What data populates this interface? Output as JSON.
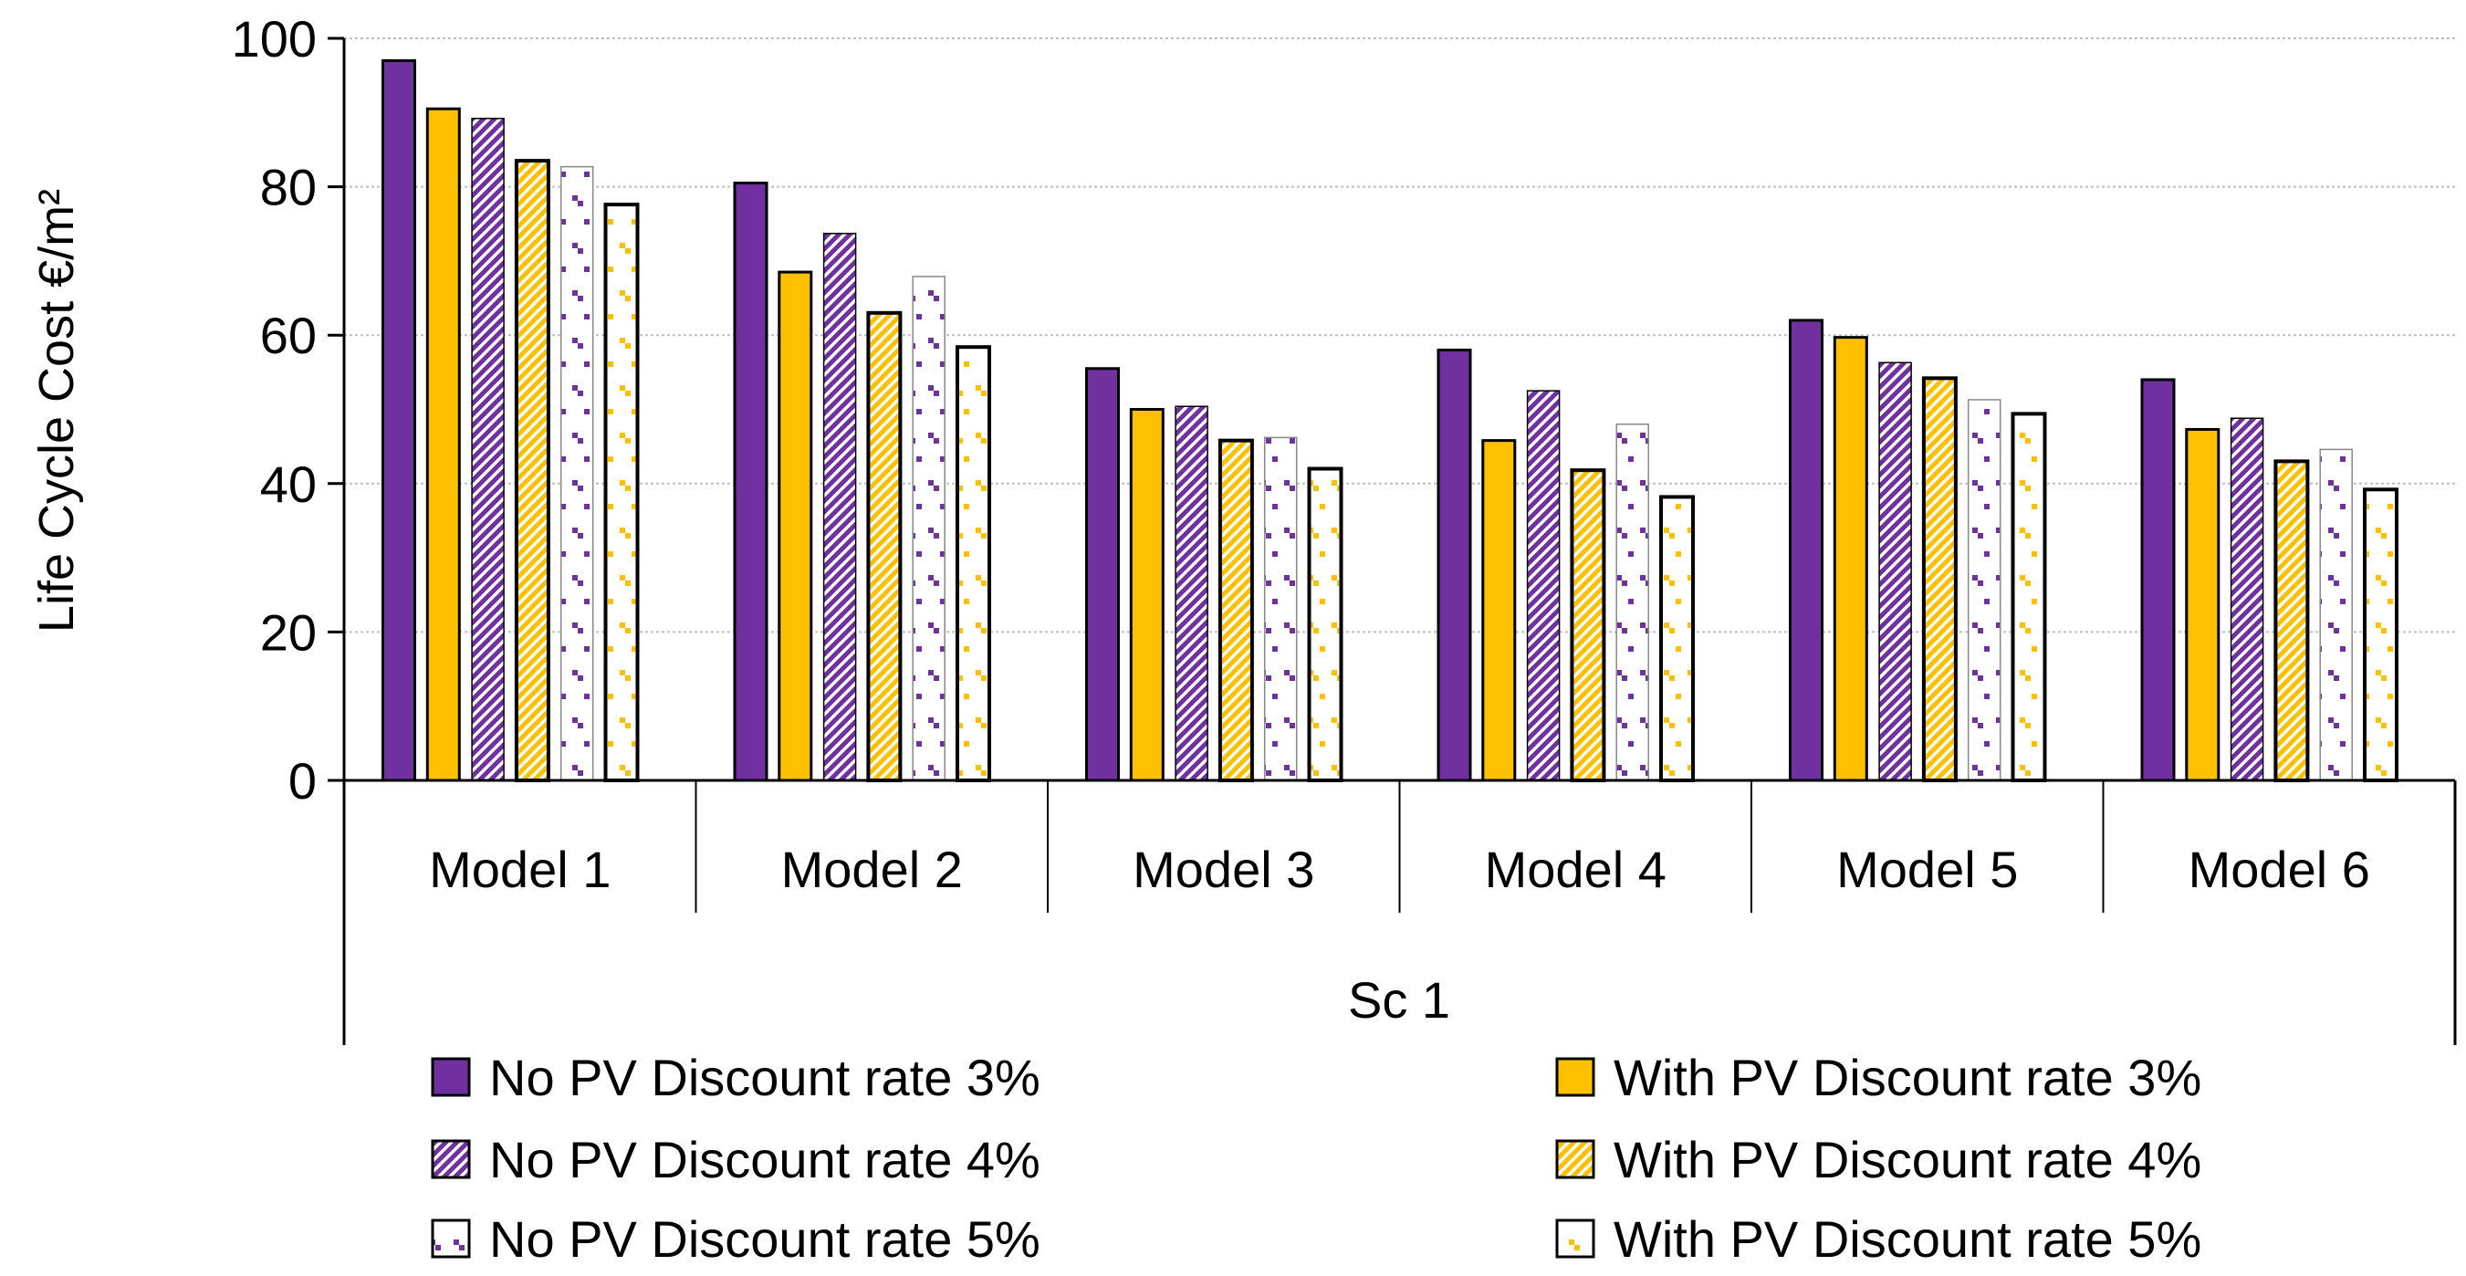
{
  "chart_data": {
    "type": "bar",
    "title": "",
    "ylabel": "Life Cycle Cost €/m²",
    "xlabel": "",
    "group_label": "Sc 1",
    "ylim": [
      0,
      100
    ],
    "yticks": [
      0,
      20,
      40,
      60,
      80,
      100
    ],
    "grid": true,
    "legend_position": "bottom",
    "categories": [
      "Model 1",
      "Model 2",
      "Model 3",
      "Model 4",
      "Model 5",
      "Model 6"
    ],
    "series": [
      {
        "name": "No PV Discount rate 3%",
        "values": [
          97,
          80.5,
          55.5,
          58,
          62,
          54
        ]
      },
      {
        "name": "With PV Discount rate 3%",
        "values": [
          90.5,
          68.5,
          50,
          45.8,
          59.7,
          47.3
        ]
      },
      {
        "name": "No PV Discount rate 4%",
        "values": [
          89.2,
          73.7,
          50.4,
          52.5,
          56.3,
          48.8
        ]
      },
      {
        "name": "With PV Discount rate 4%",
        "values": [
          83.5,
          63,
          45.8,
          41.8,
          54.2,
          43
        ]
      },
      {
        "name": "No PV Discount rate 5%",
        "values": [
          82.7,
          67.9,
          46.2,
          48,
          51.3,
          44.6
        ]
      },
      {
        "name": "With PV Discount rate 5%",
        "values": [
          77.6,
          58.4,
          42,
          38.2,
          49.4,
          39.2
        ]
      }
    ],
    "colors": {
      "purple": "#7030A0",
      "gold": "#FFC000"
    }
  }
}
